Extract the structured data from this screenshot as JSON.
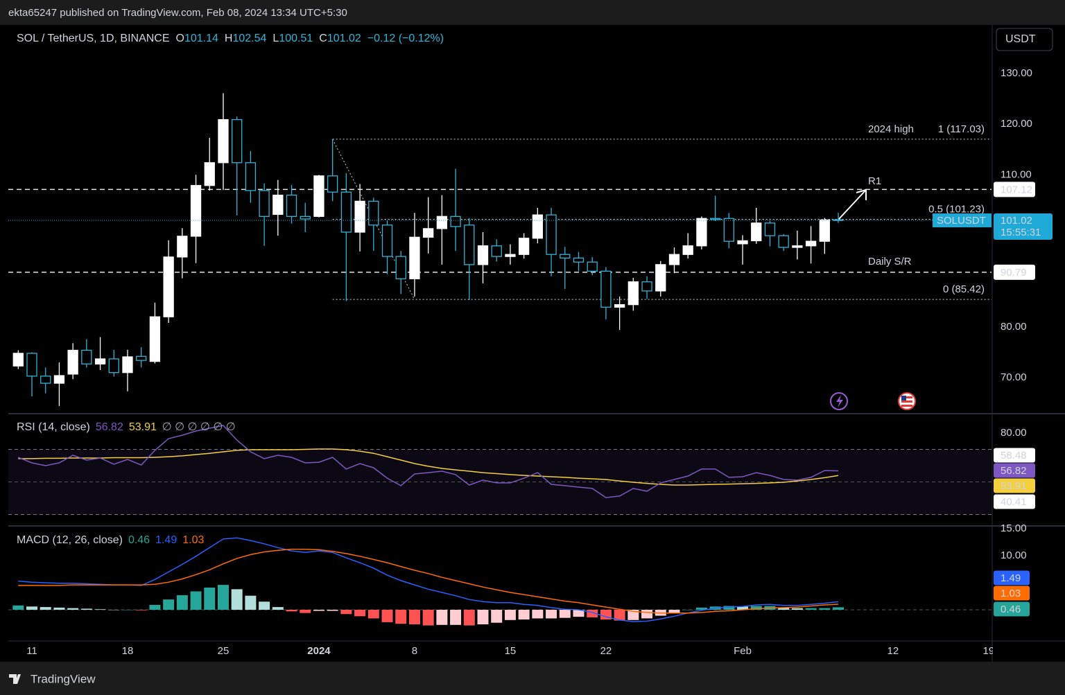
{
  "publisher": "ekta65247 published on TradingView.com, Feb 08, 2024 13:34 UTC+5:30",
  "brand": "TradingView",
  "chart_data": [
    {
      "type": "candlestick",
      "title": "SOL / TetherUS, 1D, BINANCE",
      "ohlc_labels": [
        "O",
        "H",
        "L",
        "C"
      ],
      "change_label": "−0.12 (−0.12%)",
      "currency": "USDT",
      "symbol_label": "SOLUSDT",
      "countdown": "15:55:31",
      "up_color": "#ffffff",
      "down_color": "#2eb5d9",
      "x": [
        "2023-12-10",
        "2023-12-11",
        "2023-12-12",
        "2023-12-13",
        "2023-12-14",
        "2023-12-15",
        "2023-12-16",
        "2023-12-17",
        "2023-12-18",
        "2023-12-19",
        "2023-12-20",
        "2023-12-21",
        "2023-12-22",
        "2023-12-23",
        "2023-12-24",
        "2023-12-25",
        "2023-12-26",
        "2023-12-27",
        "2023-12-28",
        "2023-12-29",
        "2023-12-30",
        "2023-12-31",
        "2024-01-01",
        "2024-01-02",
        "2024-01-03",
        "2024-01-04",
        "2024-01-05",
        "2024-01-06",
        "2024-01-07",
        "2024-01-08",
        "2024-01-09",
        "2024-01-10",
        "2024-01-11",
        "2024-01-12",
        "2024-01-13",
        "2024-01-14",
        "2024-01-15",
        "2024-01-16",
        "2024-01-17",
        "2024-01-18",
        "2024-01-19",
        "2024-01-20",
        "2024-01-21",
        "2024-01-22",
        "2024-01-23",
        "2024-01-24",
        "2024-01-25",
        "2024-01-26",
        "2024-01-27",
        "2024-01-28",
        "2024-01-29",
        "2024-01-30",
        "2024-01-31",
        "2024-02-01",
        "2024-02-02",
        "2024-02-03",
        "2024-02-04",
        "2024-02-05",
        "2024-02-06",
        "2024-02-07",
        "2024-02-08"
      ],
      "open": [
        72.3,
        74.8,
        70.3,
        68.9,
        70.7,
        75.4,
        72.7,
        73.7,
        71,
        74.2,
        73.2,
        82.0,
        93.8,
        97.9,
        107.9,
        112.4,
        120.9,
        112.4,
        106.9,
        102.2,
        106.0,
        101.8,
        101.8,
        109.8,
        106.6,
        98.7,
        104.8,
        100.1,
        93.9,
        89.5,
        97.7,
        99.4,
        101.8,
        100.1,
        92.3,
        96.0,
        93.9,
        94.3,
        97.5,
        102.1,
        94.3,
        93.6,
        92.8,
        91.0,
        83.9,
        84.4,
        88.9,
        87.1,
        92.3,
        94.3,
        96.0,
        101.4,
        101.4,
        96.4,
        97.0,
        100.5,
        98.0,
        95.7,
        96.0,
        96.9,
        101.14
      ],
      "high": [
        75.4,
        75.0,
        72.0,
        73.0,
        76.8,
        77.6,
        78.0,
        75.5,
        75.5,
        76.0,
        84.8,
        97.1,
        99.5,
        110.0,
        117.3,
        126.1,
        121.5,
        114.7,
        108.3,
        109.0,
        108.0,
        104.5,
        110.0,
        117.0,
        110.3,
        108.2,
        105.5,
        101.0,
        95.0,
        102.5,
        105.6,
        106.0,
        111.2,
        101.5,
        98.7,
        97.3,
        96.3,
        98.5,
        103.5,
        103.5,
        95.8,
        94.8,
        93.8,
        91.8,
        86.0,
        89.7,
        90.0,
        93.0,
        95.7,
        98.5,
        101.8,
        105.9,
        102.5,
        98.1,
        103.5,
        101.0,
        98.3,
        99.0,
        99.9,
        101.5,
        102.54
      ],
      "low": [
        71.7,
        66.3,
        66.9,
        64.4,
        69.7,
        72.0,
        71.5,
        70.2,
        67.3,
        72.0,
        72.8,
        80.8,
        89.6,
        92.6,
        106.9,
        107.0,
        102.0,
        104.5,
        96.0,
        98.0,
        100.4,
        98.7,
        101.6,
        104.8,
        85.1,
        94.9,
        95.0,
        90.4,
        86.5,
        86.0,
        94.5,
        92.3,
        95.0,
        85.3,
        88.6,
        92.9,
        92.3,
        93.5,
        96.5,
        90.0,
        87.5,
        91.0,
        90.2,
        81.5,
        79.4,
        83.2,
        85.5,
        86.0,
        90.6,
        93.5,
        95.3,
        100.9,
        95.5,
        92.3,
        96.4,
        95.9,
        95.0,
        93.3,
        92.5,
        94.4,
        100.51
      ],
      "close": [
        74.8,
        70.3,
        68.9,
        70.4,
        75.4,
        72.7,
        73.7,
        71,
        74.1,
        73.4,
        82.0,
        93.8,
        97.9,
        107.9,
        112.4,
        120.9,
        112.4,
        106.9,
        101.8,
        106.0,
        101.8,
        101.3,
        109.8,
        106.6,
        98.7,
        104.8,
        100.1,
        93.9,
        89.5,
        97.7,
        99.4,
        101.8,
        99.8,
        92.3,
        96.0,
        93.9,
        94.3,
        97.5,
        102.1,
        94.3,
        93.6,
        92.8,
        91.0,
        83.9,
        84.4,
        88.9,
        87.1,
        92.3,
        94.3,
        96.0,
        101.4,
        101.2,
        96.9,
        97.0,
        100.5,
        98.0,
        95.7,
        96.0,
        96.9,
        101.1,
        101.02
      ],
      "xlim": [
        "2023-12-09T06:36Z",
        "2024-02-19T05:02Z"
      ],
      "xticks": [
        {
          "value": "2023-12-11",
          "label": "11"
        },
        {
          "value": "2023-12-18",
          "label": "18"
        },
        {
          "value": "2023-12-25",
          "label": "25"
        },
        {
          "value": "2024-01-01",
          "label": "2024"
        },
        {
          "value": "2024-01-08",
          "label": "8"
        },
        {
          "value": "2024-01-15",
          "label": "15"
        },
        {
          "value": "2024-01-22",
          "label": "22"
        },
        {
          "value": "2024-02-01",
          "label": "Feb"
        },
        {
          "value": "2024-02-12",
          "label": "12"
        },
        {
          "value": "2024-02-19",
          "label": "19"
        }
      ],
      "ylim": [
        63.03,
        139.57
      ],
      "yticks": [
        {
          "value": 70,
          "label": "70.00"
        },
        {
          "value": 80,
          "label": "80.00"
        },
        {
          "value": 90,
          "label": "90.00"
        },
        {
          "value": 100,
          "label": "100.00"
        },
        {
          "value": 110,
          "label": "110.00"
        },
        {
          "value": 120,
          "label": "120.00"
        },
        {
          "value": 130,
          "label": "130.00"
        }
      ],
      "sr_levels": [
        107.12,
        90.79
      ],
      "fib": {
        "from": "2024-01-02",
        "to": "2024-01-08",
        "levels": [
          {
            "value": 117.03,
            "label": "1 (117.03)"
          },
          {
            "value": 101.23,
            "label": "0.5 (101.23)"
          },
          {
            "value": 85.42,
            "label": "0 (85.42)"
          }
        ]
      },
      "annotations": [
        "2024 high",
        "R1",
        "Daily S/R"
      ]
    },
    {
      "type": "line",
      "title": "RSI (14, close)",
      "hidden_values": "∅ ∅ ∅ ∅ ∅ ∅",
      "series": [
        {
          "color": "#7e57c2",
          "values": [
            65.1,
            61.7,
            60.0,
            61.7,
            66.4,
            63.4,
            64.7,
            60.9,
            63.8,
            60.4,
            69.4,
            76.6,
            78.7,
            81.3,
            83.0,
            84.7,
            75.7,
            68.5,
            64.3,
            66.4,
            65.1,
            61.7,
            62.1,
            65.1,
            57.9,
            61.3,
            58.7,
            52.3,
            47.7,
            54.9,
            55.7,
            56.6,
            54.5,
            48.1,
            51.1,
            49.4,
            49.4,
            52.3,
            55.7,
            48.5,
            47.7,
            46.8,
            46.0,
            40.4,
            41.3,
            46.0,
            44.3,
            49.4,
            51.5,
            53.6,
            57.9,
            57.9,
            52.8,
            53.2,
            55.7,
            54.0,
            51.5,
            51.1,
            52.8,
            57.0,
            56.82
          ]
        },
        {
          "color": "#f4d03f",
          "values": [
            64.3,
            64.3,
            64.5,
            64.5,
            64.7,
            64.7,
            64.7,
            64.9,
            64.9,
            64.9,
            65.1,
            65.5,
            66.0,
            66.8,
            67.6,
            68.5,
            69.4,
            69.8,
            69.8,
            69.8,
            69.8,
            70.0,
            70.2,
            70.2,
            69.8,
            68.9,
            67.6,
            65.5,
            63.4,
            61.3,
            59.6,
            58.3,
            57.4,
            56.6,
            55.7,
            55.1,
            54.5,
            54.0,
            53.6,
            53.2,
            52.8,
            52.3,
            51.9,
            51.5,
            50.6,
            49.8,
            49.1,
            48.5,
            48.1,
            48.1,
            48.3,
            48.5,
            48.7,
            48.9,
            49.1,
            49.4,
            49.8,
            50.6,
            51.5,
            52.6,
            53.91
          ]
        }
      ],
      "markers": [
        58.48,
        40.41
      ],
      "band": [
        30,
        70
      ],
      "midline": 50,
      "ylim": [
        23.4,
        91.5
      ],
      "yticks": [
        {
          "value": 80,
          "label": "80.00"
        }
      ]
    },
    {
      "type": "macd",
      "title": "MACD (12, 26, close)",
      "histogram": [
        0.8,
        0.6,
        0.5,
        0.4,
        0.3,
        0.2,
        0.1,
        0.0,
        0.0,
        -0.1,
        0.9,
        1.9,
        2.7,
        3.4,
        4.1,
        4.6,
        3.8,
        2.6,
        1.5,
        0.5,
        -0.3,
        -0.6,
        -0.2,
        -0.2,
        -0.8,
        -1.2,
        -1.6,
        -2.3,
        -2.6,
        -2.7,
        -2.9,
        -2.8,
        -2.8,
        -2.9,
        -2.7,
        -2.4,
        -1.9,
        -1.8,
        -1.6,
        -1.6,
        -1.5,
        -1.3,
        -1.4,
        -1.8,
        -2.0,
        -1.9,
        -1.6,
        -1.1,
        -0.6,
        0.0,
        0.4,
        0.6,
        0.7,
        0.6,
        0.7,
        0.7,
        0.4,
        0.3,
        0.3,
        0.3,
        0.46
      ],
      "histogram_colors": [
        "#26a69a",
        "#b2dfdb",
        "#ffcdd2",
        "#ff5252"
      ],
      "series": [
        {
          "color": "#2962ff",
          "values": [
            5.3,
            5.1,
            5.0,
            4.9,
            4.9,
            4.8,
            4.7,
            4.6,
            4.6,
            4.5,
            5.6,
            7.0,
            8.4,
            9.9,
            11.5,
            13.1,
            13.3,
            12.8,
            12.2,
            11.5,
            10.9,
            10.6,
            10.9,
            10.6,
            9.6,
            8.7,
            7.7,
            6.4,
            5.4,
            4.6,
            3.8,
            3.2,
            2.6,
            1.9,
            1.5,
            1.3,
            1.3,
            1.0,
            0.8,
            0.4,
            0.1,
            0.0,
            -0.5,
            -1.3,
            -1.9,
            -2.2,
            -2.1,
            -1.7,
            -1.2,
            -0.6,
            -0.1,
            0.3,
            0.5,
            0.6,
            0.9,
            1.0,
            0.8,
            0.8,
            1.0,
            1.2,
            1.49
          ]
        },
        {
          "color": "#ff6d00",
          "values": [
            4.5,
            4.5,
            4.5,
            4.5,
            4.6,
            4.6,
            4.6,
            4.6,
            4.6,
            4.6,
            4.7,
            5.1,
            5.7,
            6.5,
            7.4,
            8.5,
            9.5,
            10.2,
            10.7,
            11.0,
            11.2,
            11.2,
            11.1,
            10.8,
            10.4,
            9.9,
            9.3,
            8.7,
            8.0,
            7.3,
            6.7,
            6.0,
            5.4,
            4.8,
            4.2,
            3.7,
            3.2,
            2.8,
            2.4,
            2.0,
            1.6,
            1.3,
            0.9,
            0.5,
            0.1,
            -0.3,
            -0.5,
            -0.6,
            -0.6,
            -0.6,
            -0.5,
            -0.3,
            -0.2,
            0.0,
            0.2,
            0.3,
            0.4,
            0.5,
            0.7,
            0.9,
            1.03
          ]
        }
      ],
      "ylim": [
        -5.77,
        15.38
      ],
      "yticks": [
        {
          "value": 10,
          "label": "10.00"
        },
        {
          "value": 15,
          "label": "15.00"
        }
      ]
    }
  ]
}
